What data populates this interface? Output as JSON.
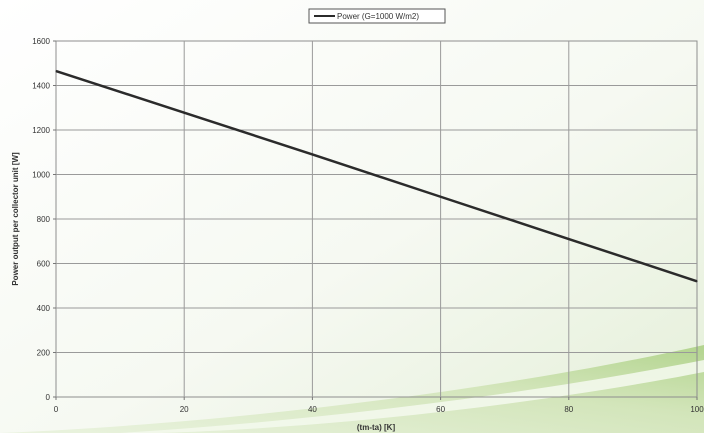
{
  "chart_data": {
    "type": "line",
    "title": "",
    "xlabel": "(tm-ta) [K]",
    "ylabel": "Power output per collector unit [W]",
    "xlim": [
      0,
      100
    ],
    "ylim": [
      0,
      1600
    ],
    "xticks": [
      0,
      20,
      40,
      60,
      80,
      100
    ],
    "yticks": [
      0,
      200,
      400,
      600,
      800,
      1000,
      1200,
      1400,
      1600
    ],
    "grid": true,
    "legend_position": "top-center",
    "series": [
      {
        "name": "Power (G=1000 W/m2)",
        "color": "#2b2b2b",
        "x": [
          0,
          20,
          40,
          60,
          80,
          100
        ],
        "y": [
          1465,
          1278,
          1090,
          900,
          710,
          520
        ]
      }
    ]
  }
}
